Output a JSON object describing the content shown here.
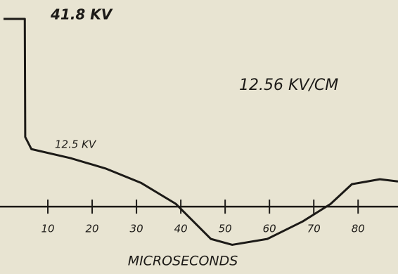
{
  "chart_data": {
    "type": "line",
    "annotations": [
      "41.8 KV",
      "12.5 KV",
      "12.56 KV/CM"
    ],
    "x_label": "MICROSECONDS",
    "x": [
      0,
      4.8,
      4.9,
      6.3,
      15.1,
      23.0,
      31.0,
      38.9,
      46.8,
      51.6,
      59.5,
      67.5,
      73.8,
      78.6,
      84.9,
      89
    ],
    "values": [
      41.8,
      41.8,
      15.5,
      12.8,
      10.8,
      8.5,
      5.3,
      0.6,
      -7.2,
      -8.5,
      -7.2,
      -3.3,
      0.6,
      5.0,
      6.1,
      5.6
    ],
    "color": "#1c1a17",
    "xlim": [
      0,
      89
    ],
    "ylim": [
      -15,
      46
    ],
    "xticks": [
      10,
      20,
      30,
      40,
      50,
      60,
      70,
      80
    ]
  }
}
